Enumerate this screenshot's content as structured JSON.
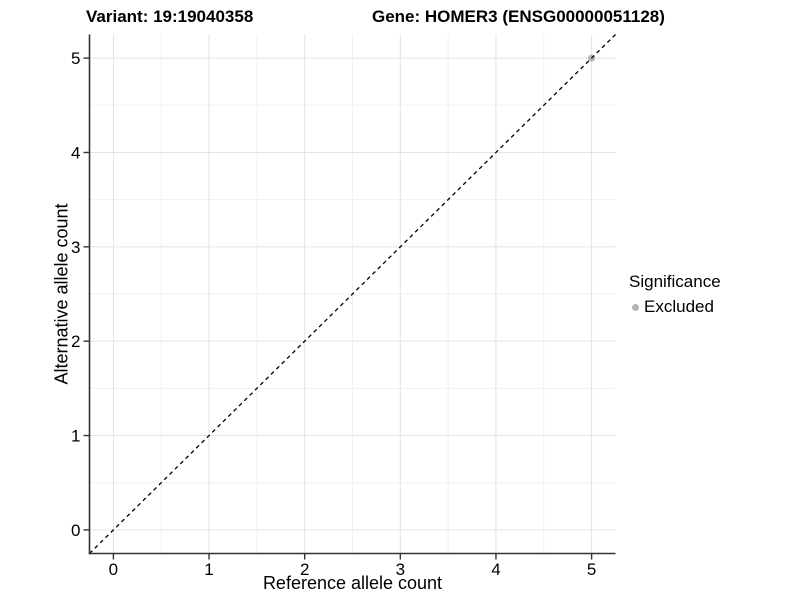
{
  "chart_data": {
    "type": "scatter",
    "titles": {
      "variant": "Variant: 19:19040358",
      "gene": "Gene: HOMER3 (ENSG00000051128)"
    },
    "xlabel": "Reference allele count",
    "ylabel": "Alternative allele count",
    "xlim": [
      -0.25,
      5.25
    ],
    "ylim": [
      -0.25,
      5.25
    ],
    "xticks": [
      0,
      1,
      2,
      3,
      4,
      5
    ],
    "yticks": [
      0,
      1,
      2,
      3,
      4,
      5
    ],
    "x_tick_labels": [
      "0",
      "1",
      "2",
      "3",
      "4",
      "5"
    ],
    "y_tick_labels": [
      "0",
      "1",
      "2",
      "3",
      "4",
      "5"
    ],
    "grid": {
      "major": true,
      "minor": true,
      "major_color": "#e3e3e3",
      "minor_color": "#f1f1f1"
    },
    "background": "#ffffff",
    "axis_line_color": "#333333",
    "series": [
      {
        "name": "Excluded",
        "color": "#b5b5b5",
        "points": [
          [
            5,
            5
          ]
        ]
      }
    ],
    "reference_line": {
      "style": "dashed",
      "slope": 1,
      "intercept": 0,
      "color": "#000000"
    },
    "legend_position": "right"
  },
  "legend": {
    "title": "Significance",
    "items": [
      {
        "label": "Excluded",
        "color": "#b5b5b5"
      }
    ]
  }
}
